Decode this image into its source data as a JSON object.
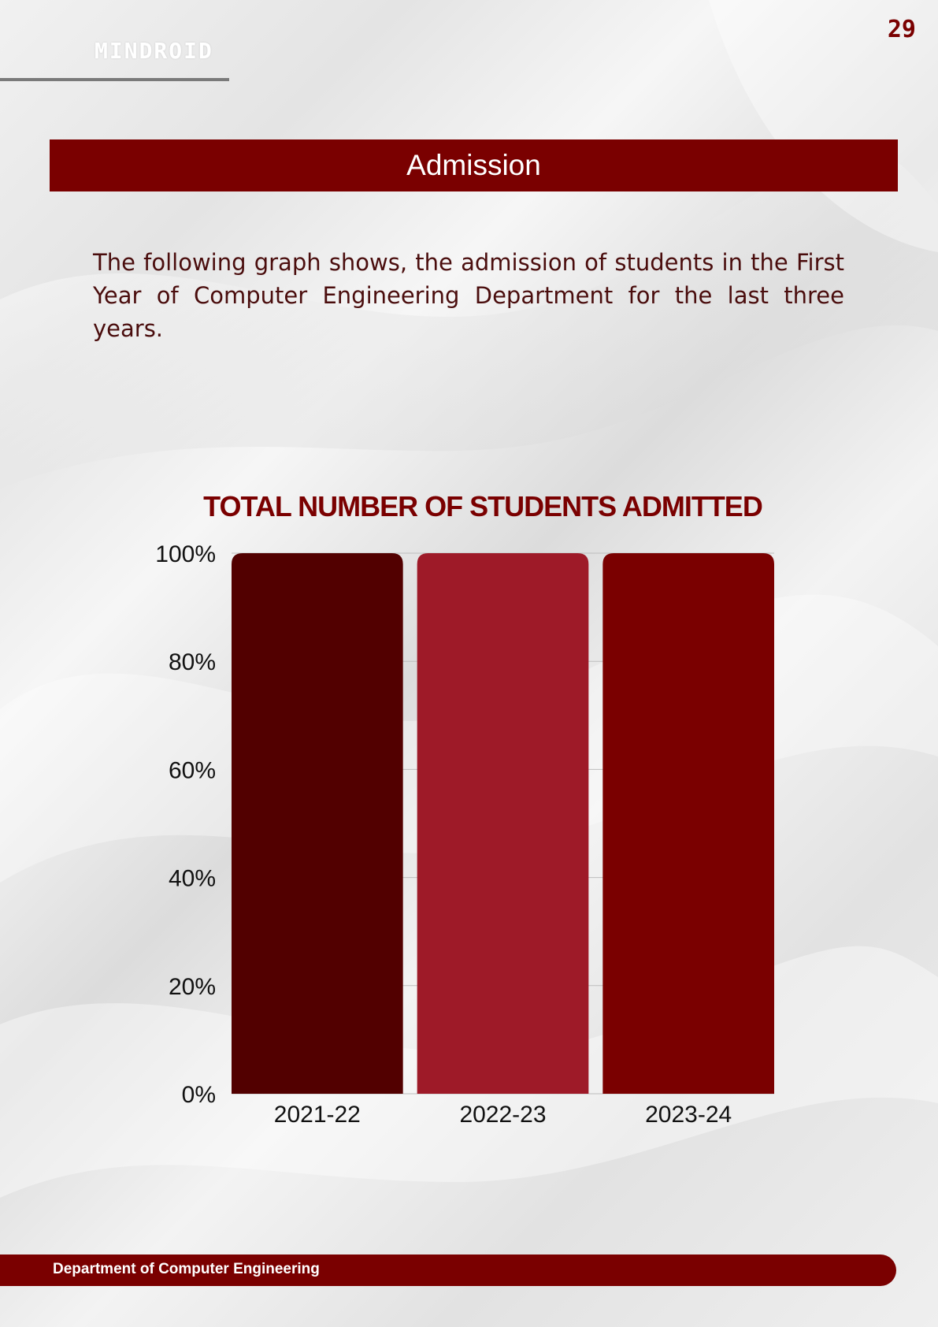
{
  "header": {
    "brand": "MINDROID",
    "page_number": "29"
  },
  "section": {
    "title": "Admission"
  },
  "intro_text": "The following graph shows, the admission of students in the First Year of Computer Engineering Department for the last three years.",
  "chart_data": {
    "type": "bar",
    "title": "TOTAL NUMBER OF STUDENTS ADMITTED",
    "categories": [
      "2021-22",
      "2022-23",
      "2023-24"
    ],
    "values": [
      100,
      100,
      100
    ],
    "bar_colors": [
      "#520000",
      "#9e1a28",
      "#7a0000"
    ],
    "ylim": [
      0,
      100
    ],
    "yticks": [
      0,
      20,
      40,
      60,
      80,
      100
    ],
    "ytick_labels": [
      "0%",
      "20%",
      "40%",
      "60%",
      "80%",
      "100%"
    ],
    "grid": true,
    "legend": "none"
  },
  "footer": {
    "department": "Department of Computer Engineering"
  },
  "colors": {
    "accent": "#7a0000"
  }
}
